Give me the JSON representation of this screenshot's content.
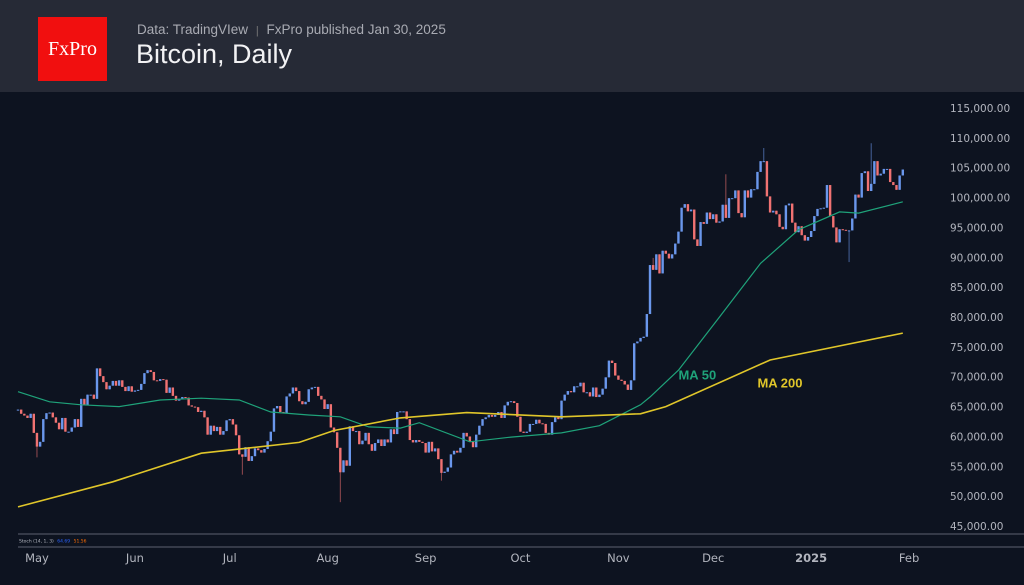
{
  "header": {
    "logo_text": "FxPro",
    "source": "Data: TradingVIew",
    "publisher": "FxPro published Jan 30, 2025",
    "title": "Bitcoin, Daily"
  },
  "indicator": {
    "label": "Stoch (14, 1, 3)",
    "k": "64.69",
    "d": "51.56",
    "k_color": "#2962ff",
    "d_color": "#ff6d00"
  },
  "colors": {
    "background": "#0d1320",
    "header": "#262a36",
    "up": "#6a97ec",
    "down": "#f07272",
    "ma50": "#1fa37a",
    "ma200": "#e0c62a",
    "brand": "#f10f0f"
  },
  "chart_data": {
    "type": "candlestick",
    "title": "Bitcoin, Daily",
    "ylim": [
      45000,
      115000
    ],
    "y_ticks": [
      "45,000.00",
      "50,000.00",
      "55,000.00",
      "60,000.00",
      "65,000.00",
      "70,000.00",
      "75,000.00",
      "80,000.00",
      "85,000.00",
      "90,000.00",
      "95,000.00",
      "100,000.00",
      "105,000.00",
      "110,000.00",
      "115,000.00"
    ],
    "y_tick_values": [
      45000,
      50000,
      55000,
      60000,
      65000,
      70000,
      75000,
      80000,
      85000,
      90000,
      95000,
      100000,
      105000,
      110000,
      115000
    ],
    "x_ticks": [
      {
        "label": "May",
        "date": "2024-05-01"
      },
      {
        "label": "Jun",
        "date": "2024-06-01"
      },
      {
        "label": "Jul",
        "date": "2024-07-01"
      },
      {
        "label": "Aug",
        "date": "2024-08-01"
      },
      {
        "label": "Sep",
        "date": "2024-09-01"
      },
      {
        "label": "Oct",
        "date": "2024-10-01"
      },
      {
        "label": "Nov",
        "date": "2024-11-01"
      },
      {
        "label": "Dec",
        "date": "2024-12-01"
      },
      {
        "label": "2025",
        "date": "2025-01-01",
        "bold": true
      },
      {
        "label": "Feb",
        "date": "2025-02-01"
      }
    ],
    "start_date": "2024-04-25",
    "closes": [
      64500,
      63800,
      63500,
      63100,
      63800,
      60600,
      58300,
      59100,
      62900,
      63900,
      64000,
      63200,
      62300,
      61200,
      63100,
      60800,
      60800,
      61500,
      62900,
      61600,
      66300,
      65200,
      67000,
      67000,
      66300,
      71400,
      70100,
      69100,
      67900,
      68500,
      69300,
      68500,
      69400,
      68300,
      67600,
      68400,
      67500,
      67700,
      67800,
      68800,
      70600,
      71100,
      70800,
      69400,
      69300,
      69600,
      69500,
      67300,
      68200,
      66800,
      66000,
      66200,
      66600,
      66500,
      65200,
      65000,
      64900,
      64100,
      64300,
      63200,
      60300,
      61800,
      60900,
      61600,
      60300,
      60900,
      62700,
      62900,
      62000,
      60200,
      57000,
      56600,
      58200,
      55900,
      56700,
      58000,
      57700,
      57300,
      57900,
      59200,
      60800,
      64700,
      65100,
      64100,
      63900,
      66700,
      67200,
      68200,
      67600,
      65900,
      65400,
      65800,
      67900,
      68200,
      68300,
      66800,
      66200,
      64600,
      65400,
      61500,
      60700,
      58100,
      54000,
      56000,
      55100,
      61700,
      60900,
      60900,
      58700,
      59300,
      60600,
      58700,
      57600,
      58900,
      59500,
      58400,
      59500,
      59000,
      61200,
      60400,
      64100,
      64200,
      64200,
      62900,
      59400,
      59000,
      59400,
      59100,
      58900,
      57300,
      59100,
      57500,
      58000,
      56200,
      53900,
      54100,
      54800,
      57000,
      57600,
      57300,
      58100,
      60600,
      60000,
      59100,
      58200,
      60300,
      61800,
      62900,
      63200,
      63600,
      63300,
      63600,
      64100,
      63100,
      65200,
      65800,
      65900,
      65600,
      63300,
      60800,
      60600,
      60800,
      62100,
      62100,
      62800,
      62200,
      62100,
      60600,
      60300,
      62400,
      63200,
      62900,
      66000,
      67000,
      67600,
      67400,
      68400,
      68400,
      69000,
      67400,
      67400,
      66700,
      68200,
      66600,
      67000,
      68000,
      69900,
      72700,
      72300,
      70200,
      69500,
      69300,
      68700,
      67800,
      69400,
      75600,
      75900,
      76500,
      76700,
      80500,
      88700,
      87900,
      90500,
      87300,
      91100,
      90600,
      89800,
      90500,
      92300,
      94300,
      98300,
      98900,
      97700,
      98000,
      93000,
      91900,
      95900,
      95600,
      97500,
      96400,
      97200,
      95800,
      96000,
      98800,
      96600,
      99900,
      99900,
      101200,
      97400,
      96700,
      101200,
      100000,
      101400,
      101400,
      104300,
      106100,
      106100,
      100200,
      97500,
      97800,
      97200,
      95100,
      94700,
      98700,
      99000,
      95800,
      94200,
      95200,
      93700,
      92800,
      93400,
      94400,
      96900,
      98100,
      98200,
      98300,
      102100,
      96900,
      95000,
      92500,
      94700,
      94600,
      94500,
      94500,
      96500,
      100500,
      100000,
      104100,
      104400,
      101100,
      102300,
      106100,
      103700,
      104000,
      104800,
      104800,
      102600,
      102100,
      101300,
      103700,
      104700
    ],
    "notable_wicks": [
      {
        "date": "2024-05-01",
        "low": 56500
      },
      {
        "date": "2024-07-05",
        "low": 53600
      },
      {
        "date": "2024-08-05",
        "low": 49000
      },
      {
        "date": "2024-09-06",
        "low": 52600
      },
      {
        "date": "2024-11-12",
        "high": 89900
      },
      {
        "date": "2024-12-05",
        "high": 103900
      },
      {
        "date": "2024-12-17",
        "high": 108300
      },
      {
        "date": "2025-01-13",
        "low": 89200
      },
      {
        "date": "2025-01-20",
        "high": 109100
      }
    ],
    "series": [
      {
        "name": "MA 50",
        "color": "#1fa37a",
        "points": [
          [
            "2024-04-25",
            67500
          ],
          [
            "2024-05-05",
            65800
          ],
          [
            "2024-05-15",
            65300
          ],
          [
            "2024-05-27",
            65000
          ],
          [
            "2024-06-09",
            66100
          ],
          [
            "2024-06-22",
            66400
          ],
          [
            "2024-07-04",
            66100
          ],
          [
            "2024-07-14",
            64100
          ],
          [
            "2024-07-26",
            63600
          ],
          [
            "2024-08-05",
            63300
          ],
          [
            "2024-08-14",
            61600
          ],
          [
            "2024-08-24",
            61400
          ],
          [
            "2024-08-30",
            62300
          ],
          [
            "2024-09-15",
            59100
          ],
          [
            "2024-09-28",
            59900
          ],
          [
            "2024-10-14",
            60600
          ],
          [
            "2024-10-26",
            61800
          ],
          [
            "2024-11-08",
            65300
          ],
          [
            "2024-11-11",
            66600
          ],
          [
            "2024-11-20",
            71100
          ],
          [
            "2024-12-03",
            80000
          ],
          [
            "2024-12-16",
            89000
          ],
          [
            "2024-12-28",
            94600
          ],
          [
            "2025-01-10",
            97600
          ],
          [
            "2025-01-16",
            97400
          ],
          [
            "2025-01-30",
            99300
          ]
        ]
      },
      {
        "name": "MA 200",
        "color": "#e0c62a",
        "points": [
          [
            "2024-04-25",
            48200
          ],
          [
            "2024-05-25",
            52400
          ],
          [
            "2024-06-22",
            57200
          ],
          [
            "2024-07-23",
            59000
          ],
          [
            "2024-08-03",
            61000
          ],
          [
            "2024-08-24",
            63100
          ],
          [
            "2024-09-14",
            64000
          ],
          [
            "2024-10-14",
            63300
          ],
          [
            "2024-11-08",
            63800
          ],
          [
            "2024-11-16",
            65000
          ],
          [
            "2024-12-19",
            72800
          ],
          [
            "2025-01-30",
            77300
          ]
        ]
      }
    ],
    "annotations": [
      {
        "text": "MA 50",
        "color": "#1fa37a",
        "date": "2024-11-20",
        "price": 69500
      },
      {
        "text": "MA 200",
        "color": "#e0c62a",
        "date": "2024-12-15",
        "price": 68200
      }
    ],
    "grid": false
  }
}
